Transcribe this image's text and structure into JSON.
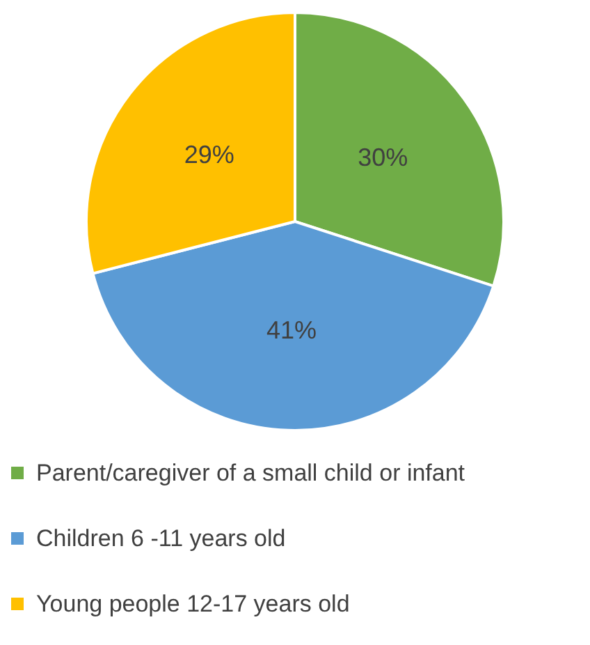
{
  "chart_data": {
    "type": "pie",
    "categories": [
      "Parent/caregiver of a small child or infant",
      "Children 6 -11 years old",
      "Young people 12-17 years old"
    ],
    "values": [
      30,
      41,
      29
    ],
    "colors": [
      "#70ad47",
      "#5b9bd5",
      "#ffc000"
    ],
    "value_labels": [
      "30%",
      "41%",
      "29%"
    ],
    "legend": "bottom"
  }
}
